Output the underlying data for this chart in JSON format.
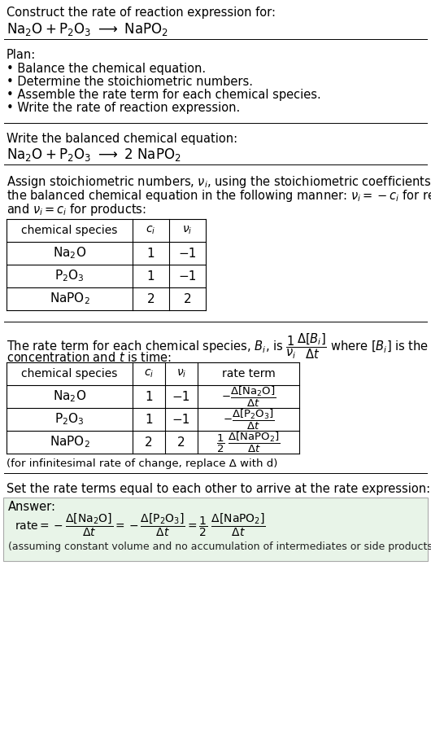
{
  "bg_color": "#ffffff",
  "text_color": "#000000",
  "title_line1": "Construct the rate of reaction expression for:",
  "plan_header": "Plan:",
  "plan_items": [
    "• Balance the chemical equation.",
    "• Determine the stoichiometric numbers.",
    "• Assemble the rate term for each chemical species.",
    "• Write the rate of reaction expression."
  ],
  "balanced_header": "Write the balanced chemical equation:",
  "stoich_intro_lines": [
    "Assign stoichiometric numbers, νⁱ, using the stoichiometric coefficients, cⁱ, from",
    "the balanced chemical equation in the following manner: νⁱ = −cⁱ for reactants",
    "and νⁱ = cⁱ for products:"
  ],
  "table1_headers": [
    "chemical species",
    "cⁱ",
    "νⁱ"
  ],
  "table1_rows": [
    [
      "Na₂O",
      "1",
      "−1"
    ],
    [
      "P₂O₃",
      "1",
      "−1"
    ],
    [
      "NaPO₂",
      "2",
      "2"
    ]
  ],
  "rate_term_line2": "concentration and t is time:",
  "table2_headers": [
    "chemical species",
    "cⁱ",
    "νⁱ",
    "rate term"
  ],
  "table2_rows": [
    [
      "Na₂O",
      "1",
      "−1"
    ],
    [
      "P₂O₃",
      "1",
      "−1"
    ],
    [
      "NaPO₂",
      "2",
      "2"
    ]
  ],
  "infinitesimal_note": "(for infinitesimal rate of change, replace Δ with d)",
  "set_equal_text": "Set the rate terms equal to each other to arrive at the rate expression:",
  "answer_box_color": "#e8f4e8",
  "answer_label": "Answer:",
  "answer_note": "(assuming constant volume and no accumulation of intermediates or side products)"
}
